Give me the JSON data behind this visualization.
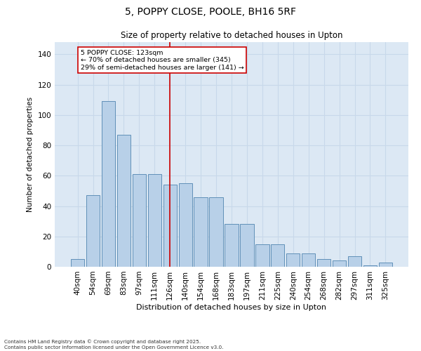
{
  "title_line1": "5, POPPY CLOSE, POOLE, BH16 5RF",
  "title_line2": "Size of property relative to detached houses in Upton",
  "xlabel": "Distribution of detached houses by size in Upton",
  "ylabel": "Number of detached properties",
  "bar_labels": [
    "40sqm",
    "54sqm",
    "69sqm",
    "83sqm",
    "97sqm",
    "111sqm",
    "126sqm",
    "140sqm",
    "154sqm",
    "168sqm",
    "183sqm",
    "197sqm",
    "211sqm",
    "225sqm",
    "240sqm",
    "254sqm",
    "268sqm",
    "282sqm",
    "297sqm",
    "311sqm",
    "325sqm"
  ],
  "bar_values": [
    5,
    47,
    109,
    87,
    61,
    61,
    54,
    55,
    46,
    46,
    28,
    28,
    15,
    15,
    9,
    9,
    5,
    4,
    7,
    1,
    3
  ],
  "bar_color": "#b8d0e8",
  "bar_edge_color": "#6090b8",
  "vline_idx": 6,
  "vline_color": "#cc0000",
  "annotation_text": "5 POPPY CLOSE: 123sqm\n← 70% of detached houses are smaller (345)\n29% of semi-detached houses are larger (141) →",
  "annotation_box_facecolor": "#ffffff",
  "annotation_box_edgecolor": "#cc0000",
  "ylim_max": 148,
  "yticks": [
    0,
    20,
    40,
    60,
    80,
    100,
    120,
    140
  ],
  "grid_color": "#c8d8ea",
  "axes_facecolor": "#dce8f4",
  "footer": "Contains HM Land Registry data © Crown copyright and database right 2025.\nContains public sector information licensed under the Open Government Licence v3.0."
}
